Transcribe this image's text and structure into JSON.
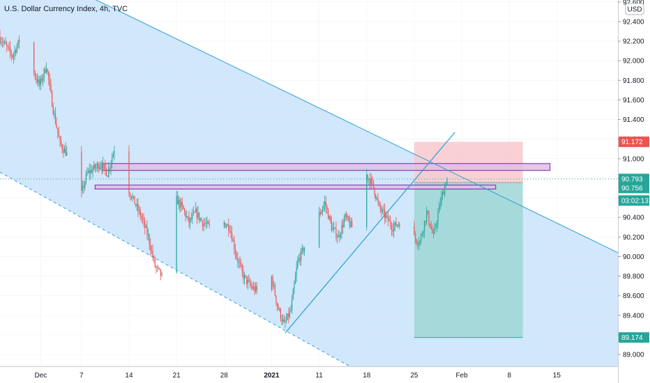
{
  "header": {
    "title": "U.S. Dollar Currency Index, 4h, TVC"
  },
  "currency_button": "USD",
  "colors": {
    "up": "#26a69a",
    "down": "#ef5350",
    "channel_fill": "#cfe6fb",
    "trendline": "#2a9fd6",
    "zone_fill": "#e1bee7",
    "zone_stroke": "#7b1fa2",
    "stop_fill": "#f8c9cc",
    "target_fill": "#9fd6d3",
    "stop_badge": "#ef5350",
    "target_badge": "#26a69a",
    "price_line": "#26a69a"
  },
  "chart_data": {
    "type": "candlestick",
    "title": "U.S. Dollar Currency Index, 4h, TVC",
    "x_tick_labels": [
      "Dec",
      "7",
      "14",
      "21",
      "28",
      "2021",
      "11",
      "18",
      "25",
      "Feb",
      "8",
      "15"
    ],
    "y_tick_labels": [
      "92.600",
      "92.400",
      "92.200",
      "92.000",
      "91.800",
      "91.600",
      "91.400",
      "91.200",
      "91.000",
      "90.800",
      "90.600",
      "90.400",
      "90.200",
      "90.000",
      "89.800",
      "89.600",
      "89.400",
      "89.200",
      "89.000"
    ],
    "ylim": [
      88.88,
      92.62
    ],
    "x_range": [
      "2020-11-25",
      "2021-02-24"
    ],
    "price_badges": [
      {
        "label": "91.172",
        "value": 91.172,
        "kind": "stop"
      },
      {
        "label": "90.793",
        "value": 90.793,
        "kind": "last"
      },
      {
        "label": "90.756",
        "value": 90.756,
        "kind": "entry"
      },
      {
        "label": "03:02:13",
        "value": null,
        "kind": "countdown"
      },
      {
        "label": "89.174",
        "value": 89.174,
        "kind": "target"
      }
    ],
    "candle_path": [
      [
        "2020-11-25",
        92.25
      ],
      [
        "2020-11-26",
        92.15
      ],
      [
        "2020-11-27",
        92.05
      ],
      [
        "2020-11-28",
        92.2
      ],
      [
        "2020-11-29",
        92.1
      ],
      [
        "2020-11-30",
        91.9
      ],
      [
        "2020-12-01",
        91.75
      ],
      [
        "2020-12-02",
        91.95
      ],
      [
        "2020-12-03",
        91.5
      ],
      [
        "2020-12-04",
        91.15
      ],
      [
        "2020-12-05",
        91.05
      ],
      [
        "2020-12-06",
        90.75
      ],
      [
        "2020-12-07",
        90.6
      ],
      [
        "2020-12-08",
        90.85
      ],
      [
        "2020-12-09",
        90.9
      ],
      [
        "2020-12-10",
        90.95
      ],
      [
        "2020-12-11",
        90.85
      ],
      [
        "2020-12-12",
        91.1
      ],
      [
        "2020-12-13",
        90.95
      ],
      [
        "2020-12-14",
        90.7
      ],
      [
        "2020-12-15",
        90.55
      ],
      [
        "2020-12-16",
        90.4
      ],
      [
        "2020-12-17",
        90.2
      ],
      [
        "2020-12-18",
        89.9
      ],
      [
        "2020-12-19",
        89.8
      ],
      [
        "2020-12-20",
        90.0
      ],
      [
        "2020-12-21",
        90.6
      ],
      [
        "2020-12-22",
        90.5
      ],
      [
        "2020-12-23",
        90.35
      ],
      [
        "2020-12-24",
        90.45
      ],
      [
        "2020-12-25",
        90.35
      ],
      [
        "2020-12-26",
        90.3
      ],
      [
        "2020-12-27",
        90.4
      ],
      [
        "2020-12-28",
        90.35
      ],
      [
        "2020-12-29",
        90.3
      ],
      [
        "2020-12-30",
        90.0
      ],
      [
        "2020-12-31",
        89.8
      ],
      [
        "2021-01-01",
        89.7
      ],
      [
        "2021-01-02",
        89.65
      ],
      [
        "2021-01-03",
        89.75
      ],
      [
        "2021-01-04",
        89.85
      ],
      [
        "2021-01-05",
        89.5
      ],
      [
        "2021-01-06",
        89.3
      ],
      [
        "2021-01-07",
        89.45
      ],
      [
        "2021-01-08",
        89.95
      ],
      [
        "2021-01-09",
        90.1
      ],
      [
        "2021-01-10",
        90.0
      ],
      [
        "2021-01-11",
        90.4
      ],
      [
        "2021-01-12",
        90.55
      ],
      [
        "2021-01-13",
        90.3
      ],
      [
        "2021-01-14",
        90.2
      ],
      [
        "2021-01-15",
        90.4
      ],
      [
        "2021-01-16",
        90.3
      ],
      [
        "2021-01-17",
        90.7
      ],
      [
        "2021-01-18",
        90.85
      ],
      [
        "2021-01-19",
        90.75
      ],
      [
        "2021-01-20",
        90.5
      ],
      [
        "2021-01-21",
        90.4
      ],
      [
        "2021-01-22",
        90.3
      ],
      [
        "2021-01-23",
        90.35
      ],
      [
        "2021-01-24",
        90.15
      ],
      [
        "2021-01-25",
        90.2
      ],
      [
        "2021-01-26",
        90.15
      ],
      [
        "2021-01-27",
        90.45
      ],
      [
        "2021-01-28",
        90.2
      ],
      [
        "2021-01-29",
        90.55
      ],
      [
        "2021-01-30",
        90.8
      ],
      [
        "2021-01-31",
        90.79
      ]
    ],
    "channel_upper_line": [
      [
        "2020-12-05",
        92.76
      ],
      [
        "2021-02-24",
        90.04
      ]
    ],
    "channel_lower_line": [
      [
        "2020-11-24",
        90.9
      ],
      [
        "2021-01-16",
        88.86
      ]
    ],
    "rising_trendline": [
      [
        "2021-01-06",
        89.22
      ],
      [
        "2021-01-31",
        91.27
      ]
    ],
    "resistance_zones": [
      {
        "label": "upper zone",
        "x": [
          "2020-12-10",
          "2021-02-14"
        ],
        "y": [
          90.88,
          90.95
        ]
      },
      {
        "label": "lower zone",
        "x": [
          "2020-12-09",
          "2021-02-06"
        ],
        "y": [
          90.69,
          90.73
        ]
      }
    ],
    "short_position": {
      "x": [
        "2021-01-25",
        "2021-02-10"
      ],
      "entry": 90.756,
      "stop": 91.172,
      "target": 89.174
    },
    "grid": true,
    "price_axis_side": "right"
  }
}
